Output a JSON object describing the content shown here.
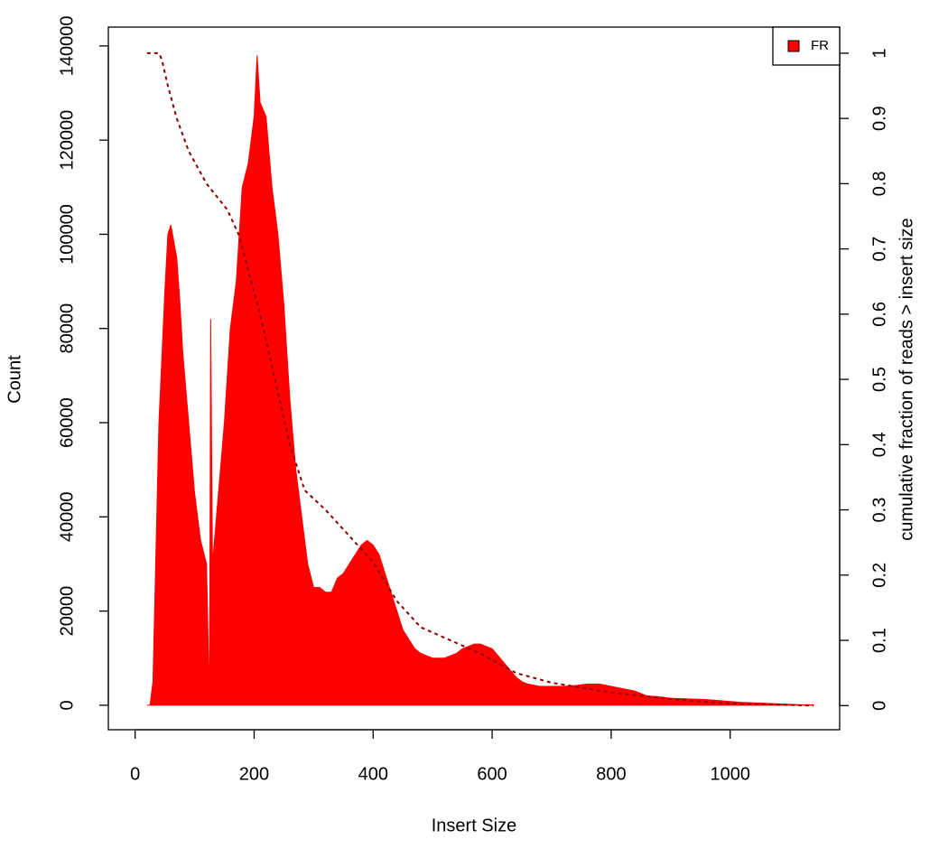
{
  "chart_data": {
    "type": "histogram-cumulative",
    "xlabel": "Insert Size",
    "ylabel": "Count",
    "y2label": "cumulative fraction of reads > insert size",
    "xlim": [
      -45,
      1184
    ],
    "ylim": [
      -5200,
      144000
    ],
    "y2lim": [
      -0.037,
      1.04
    ],
    "xticks": [
      0,
      200,
      400,
      600,
      800,
      1000
    ],
    "yticks": [
      0,
      20000,
      40000,
      60000,
      80000,
      100000,
      120000,
      140000
    ],
    "y2ticks": [
      0,
      0.1,
      0.2,
      0.3,
      0.4,
      0.5,
      0.6,
      0.7,
      0.8,
      0.9,
      1
    ],
    "legend": "top-right",
    "series": [
      {
        "name": "FR",
        "color": "#ff0000",
        "x": [
          20,
          25,
          30,
          40,
          50,
          55,
          60,
          70,
          75,
          80,
          90,
          100,
          110,
          120,
          125,
          127,
          130,
          140,
          150,
          160,
          170,
          180,
          190,
          200,
          205,
          210,
          220,
          230,
          240,
          250,
          260,
          270,
          280,
          290,
          300,
          310,
          320,
          330,
          340,
          350,
          360,
          370,
          380,
          390,
          400,
          410,
          420,
          430,
          440,
          450,
          460,
          470,
          480,
          490,
          500,
          510,
          520,
          530,
          540,
          550,
          560,
          570,
          580,
          590,
          600,
          610,
          620,
          630,
          640,
          650,
          660,
          680,
          700,
          720,
          740,
          760,
          780,
          800,
          820,
          840,
          860,
          880,
          900,
          920,
          940,
          960,
          980,
          1000,
          1020,
          1040,
          1060,
          1080,
          1100,
          1120,
          1140
        ],
        "values": [
          0,
          0,
          5000,
          60000,
          88000,
          100000,
          102000,
          95000,
          86000,
          75000,
          60000,
          45000,
          35000,
          30000,
          0,
          82000,
          30000,
          45000,
          60000,
          80000,
          90000,
          110000,
          115000,
          125000,
          138000,
          128000,
          125000,
          110000,
          100000,
          85000,
          65000,
          50000,
          40000,
          30000,
          25000,
          25000,
          24000,
          24000,
          27000,
          28000,
          30000,
          32000,
          34000,
          35000,
          34000,
          32000,
          28000,
          24000,
          20000,
          16000,
          14000,
          12000,
          11000,
          10500,
          10000,
          10000,
          10000,
          10500,
          11000,
          12000,
          12500,
          13000,
          13000,
          12500,
          12000,
          10500,
          9000,
          7500,
          6000,
          5000,
          4500,
          4000,
          4000,
          4000,
          4200,
          4500,
          4500,
          4000,
          3500,
          3000,
          2000,
          1800,
          1500,
          1400,
          1300,
          1200,
          1000,
          800,
          600,
          500,
          400,
          300,
          200,
          100,
          100
        ]
      },
      {
        "color": "#8b0000",
        "axis": "y2",
        "x": [
          20,
          40,
          45,
          55,
          70,
          90,
          120,
          155,
          175,
          195,
          210,
          235,
          260,
          285,
          320,
          360,
          400,
          440,
          480,
          530,
          580,
          640,
          700,
          800,
          900,
          1000,
          1140
        ],
        "values": [
          1,
          1,
          0.99,
          0.95,
          0.9,
          0.85,
          0.8,
          0.76,
          0.72,
          0.65,
          0.6,
          0.5,
          0.4,
          0.33,
          0.3,
          0.26,
          0.22,
          0.16,
          0.12,
          0.1,
          0.08,
          0.05,
          0.035,
          0.02,
          0.01,
          0.003,
          0
        ]
      }
    ]
  }
}
